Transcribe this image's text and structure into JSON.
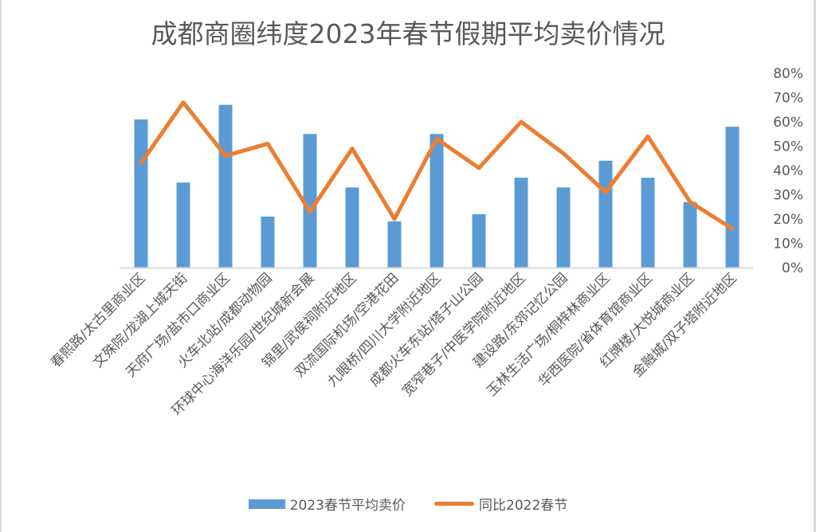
{
  "title": "成都商圈纬度2023年春节假期平均卖价情况",
  "colors": {
    "bar": "#5b9bd5",
    "line": "#ed7d31",
    "text": "#595959",
    "axis": "#d9d9d9"
  },
  "legend": {
    "bar_label": "2023春节平均卖价",
    "line_label": "同比2022春节"
  },
  "y_axis": {
    "position": "right",
    "ticks": [
      "0%",
      "10%",
      "20%",
      "30%",
      "40%",
      "50%",
      "60%",
      "70%",
      "80%"
    ]
  },
  "chart_data": {
    "type": "bar",
    "combo": "bar+line",
    "title": "成都商圈纬度2023年春节假期平均卖价情况",
    "xlabel": "",
    "ylabel": "",
    "ylim": [
      0,
      0.8
    ],
    "y_axis_position": "right",
    "grid": false,
    "legend_position": "bottom",
    "categories": [
      "春熙路/太古里商业区",
      "文殊院/龙湖上城天街",
      "天府广场/盐市口商业区",
      "火车北站/成都动物园",
      "环球中心海洋乐园/世纪城新会展",
      "锦里/武侯祠附近地区",
      "双流国际机场/空港花田",
      "九眼桥/四川大学附近地区",
      "成都火车东站/塔子山公园",
      "宽窄巷子/中医学院附近地区",
      "建设路/东郊记忆公园",
      "玉林生活广场/桐梓林商业区",
      "华西医院/省体育馆商业区",
      "红牌楼/大悦城商业区",
      "金融城/双子塔附近地区"
    ],
    "series": [
      {
        "name": "2023春节平均卖价",
        "type": "bar",
        "color": "#5b9bd5",
        "values": [
          0.61,
          0.35,
          0.67,
          0.21,
          0.55,
          0.33,
          0.19,
          0.55,
          0.22,
          0.37,
          0.33,
          0.44,
          0.37,
          0.27,
          0.58
        ]
      },
      {
        "name": "同比2022春节",
        "type": "line",
        "color": "#ed7d31",
        "values": [
          0.43,
          0.68,
          0.46,
          0.51,
          0.23,
          0.49,
          0.2,
          0.53,
          0.41,
          0.6,
          0.47,
          0.31,
          0.54,
          0.27,
          0.16
        ]
      }
    ]
  }
}
